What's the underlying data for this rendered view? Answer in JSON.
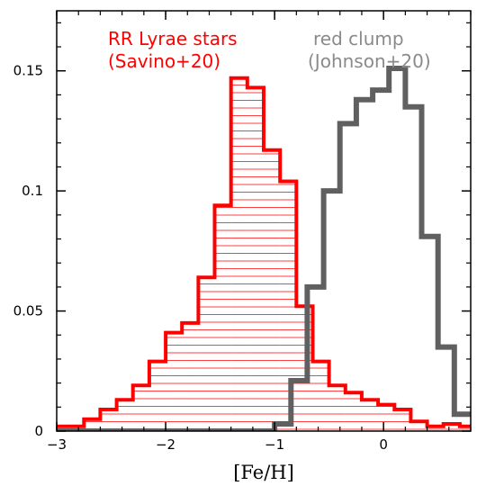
{
  "chart_data": {
    "type": "histogram",
    "xlabel": "[Fe/H]",
    "ylabel": "",
    "xlim": [
      -3.0,
      0.8
    ],
    "ylim": [
      0.0,
      0.175
    ],
    "x_ticks": [
      {
        "value": -3,
        "label": "−3"
      },
      {
        "value": -2,
        "label": "−2"
      },
      {
        "value": -1,
        "label": "−1"
      },
      {
        "value": 0,
        "label": "0"
      }
    ],
    "y_ticks": [
      {
        "value": 0,
        "label": "0"
      },
      {
        "value": 0.05,
        "label": "0.05"
      },
      {
        "value": 0.1,
        "label": "0.1"
      },
      {
        "value": 0.15,
        "label": "0.15"
      }
    ],
    "grid": false,
    "series": [
      {
        "name": "RR Lyrae stars (Savino+20)",
        "legend_line1": "RR Lyrae stars",
        "legend_line2": "(Savino+20)",
        "color": "#ff0000",
        "fill": "horizontal-hatch",
        "bin_width": 0.15,
        "edges": [
          -3.0,
          -2.75,
          -2.6,
          -2.45,
          -2.3,
          -2.15,
          -2.0,
          -1.85,
          -1.7,
          -1.55,
          -1.4,
          -1.25,
          -1.1,
          -0.95,
          -0.8,
          -0.65,
          -0.5,
          -0.35,
          -0.2,
          -0.05,
          0.1,
          0.25,
          0.4,
          0.55,
          0.7,
          0.8
        ],
        "values": [
          0.002,
          0.005,
          0.009,
          0.013,
          0.019,
          0.029,
          0.041,
          0.045,
          0.064,
          0.094,
          0.147,
          0.143,
          0.117,
          0.104,
          0.052,
          0.029,
          0.019,
          0.016,
          0.013,
          0.011,
          0.009,
          0.004,
          0.002,
          0.003,
          0.002
        ]
      },
      {
        "name": "red clump (Johnson+20)",
        "legend_line1": "red clump",
        "legend_line2": "(Johnson+20)",
        "color": "#606060",
        "fill": "none",
        "bin_width": 0.15,
        "edges": [
          -3.0,
          -1.0,
          -0.85,
          -0.7,
          -0.55,
          -0.4,
          -0.25,
          -0.1,
          0.05,
          0.2,
          0.35,
          0.5,
          0.65,
          0.8
        ],
        "values": [
          0.0,
          0.003,
          0.021,
          0.06,
          0.1,
          0.128,
          0.138,
          0.142,
          0.151,
          0.135,
          0.081,
          0.035,
          0.007
        ]
      }
    ]
  }
}
